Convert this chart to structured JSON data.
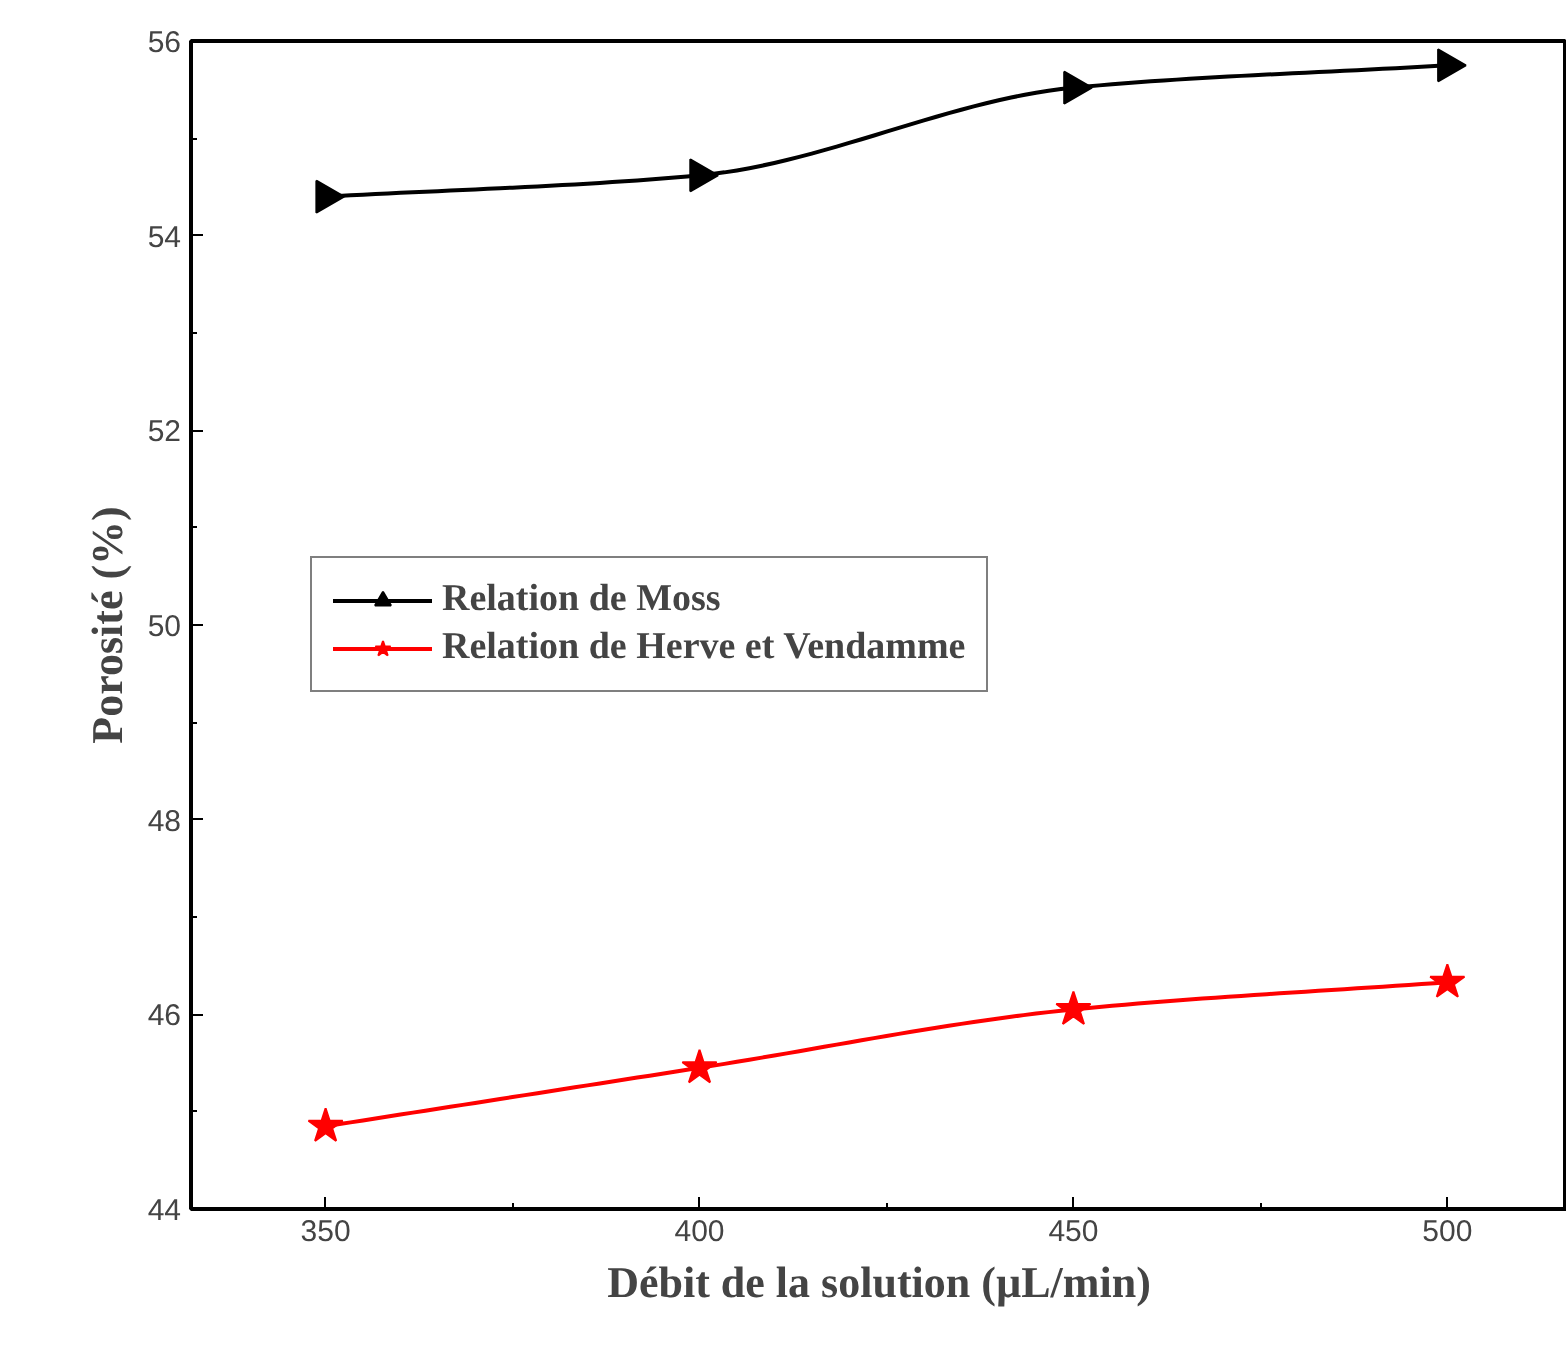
{
  "chart_data": {
    "type": "line",
    "xlabel": "Débit de la solution (µL/min)",
    "ylabel": "Porosité (%)",
    "x": [
      350,
      400,
      450,
      500
    ],
    "series": [
      {
        "name": "Relation de Moss",
        "color": "#000000",
        "marker": "triangle",
        "values": [
          54.4,
          54.62,
          55.52,
          55.75
        ]
      },
      {
        "name": "Relation de Herve et Vendamme",
        "color": "#ff0000",
        "marker": "star",
        "values": [
          44.85,
          45.45,
          46.05,
          46.33
        ]
      }
    ],
    "xlim": [
      332,
      516
    ],
    "ylim": [
      44,
      56
    ],
    "xticks": [
      350,
      400,
      450,
      500
    ],
    "yticks": [
      44,
      46,
      48,
      50,
      52,
      54,
      56
    ],
    "grid": false,
    "legend": "left",
    "line_style": "solid"
  }
}
